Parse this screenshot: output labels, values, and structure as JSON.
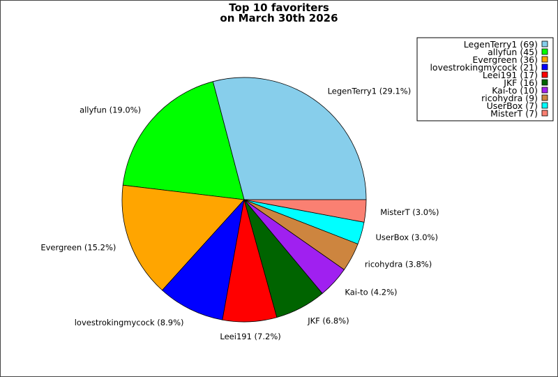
{
  "chart_data": {
    "type": "pie",
    "title": [
      "Top 10 favoriters",
      "on March 30th 2026"
    ],
    "slices": [
      {
        "name": "LegenTerry1",
        "value": 69,
        "percent": "29.1%",
        "color": "#87ceeb"
      },
      {
        "name": "allyfun",
        "value": 45,
        "percent": "19.0%",
        "color": "#00ff00"
      },
      {
        "name": "Evergreen",
        "value": 36,
        "percent": "15.2%",
        "color": "#ffa500"
      },
      {
        "name": "lovestrokingmycock",
        "value": 21,
        "percent": "8.9%",
        "color": "#0000ff"
      },
      {
        "name": "Leei191",
        "value": 17,
        "percent": "7.2%",
        "color": "#ff0000"
      },
      {
        "name": "JKF",
        "value": 16,
        "percent": "6.8%",
        "color": "#006400"
      },
      {
        "name": "Kai-to",
        "value": 10,
        "percent": "4.2%",
        "color": "#a020f0"
      },
      {
        "name": "ricohydra",
        "value": 9,
        "percent": "3.8%",
        "color": "#cd853f"
      },
      {
        "name": "UserBox",
        "value": 7,
        "percent": "3.0%",
        "color": "#00ffff"
      },
      {
        "name": "MisterT",
        "value": 7,
        "percent": "3.0%",
        "color": "#fa8072"
      }
    ],
    "legend": {
      "placement": "top-right"
    }
  }
}
